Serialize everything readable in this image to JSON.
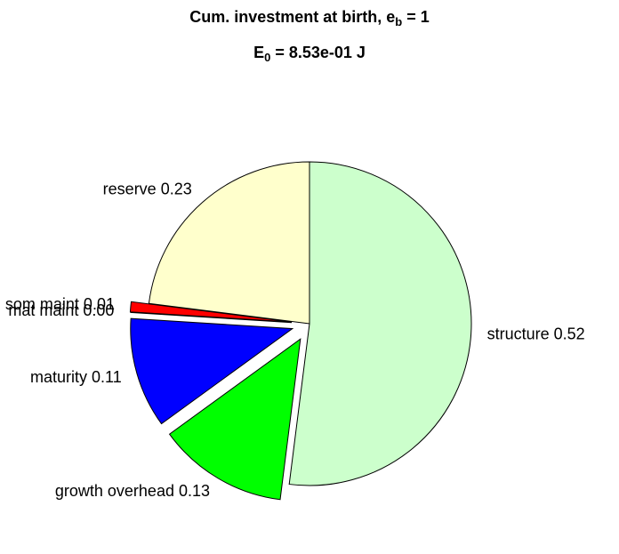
{
  "chart_data": {
    "type": "pie",
    "title": [
      "Cum. investment at birth, e",
      "b",
      " = 1"
    ],
    "subtitle": [
      "E",
      "0",
      " = 8.53e-01 J"
    ],
    "categories": [
      "structure",
      "growth overhead",
      "maturity",
      "mat maint",
      "som maint",
      "reserve"
    ],
    "values": [
      0.52,
      0.13,
      0.11,
      0.0,
      0.01,
      0.23
    ],
    "labels": [
      "structure 0.52",
      "growth overhead 0.13",
      "maturity 0.11",
      "mat maint 0.00",
      "som maint 0.01",
      "reserve 0.23"
    ],
    "colors": [
      "#ccffcc",
      "#00ff00",
      "#0000ff",
      "#ff00ff",
      "#ff0000",
      "#ffffcc"
    ],
    "explode": [
      0,
      1,
      1,
      1,
      1,
      0
    ]
  }
}
